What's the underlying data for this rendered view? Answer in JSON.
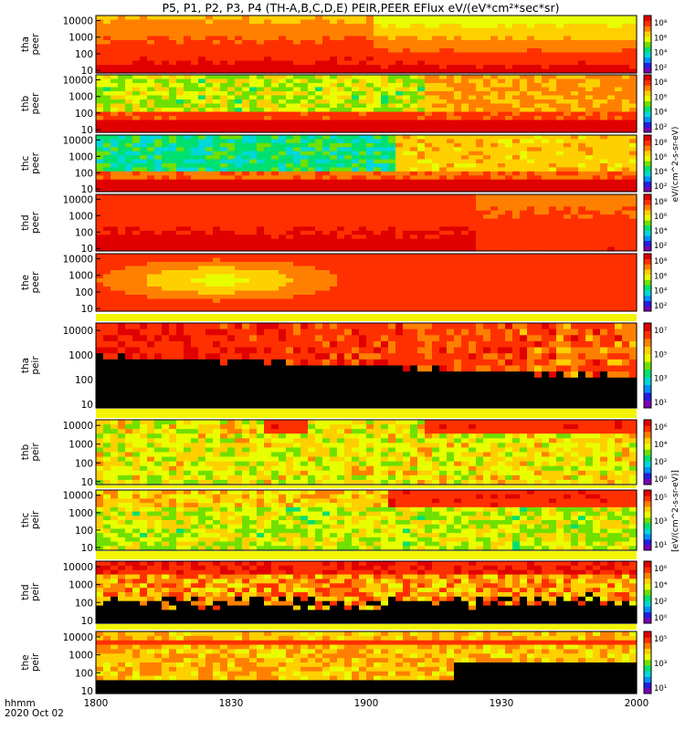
{
  "title": "P5, P1, P2, P3, P4 (TH-A,B,C,D,E) PEIR,PEER EFlux eV/(eV*cm²*sec*sr)",
  "colors": {
    "colormap": [
      "#7a00b4",
      "#2020e0",
      "#0090ff",
      "#00d8d8",
      "#00e070",
      "#70e000",
      "#e8ff00",
      "#ffd000",
      "#ff8000",
      "#ff3000",
      "#e00000"
    ],
    "background_band": "#f4f400",
    "fill": "#000000"
  },
  "chart_data": {
    "type": "heatmap",
    "x_axis": {
      "ticks": [
        "1800",
        "1830",
        "1900",
        "1930",
        "2000"
      ],
      "tick_values": [
        0,
        30,
        60,
        90,
        120
      ],
      "range": [
        0,
        120
      ],
      "label_line1": "hhmm",
      "label_line2": "2020 Oct 02"
    },
    "y_scale": "log",
    "y_ticks": [
      "10000",
      "1000",
      "100",
      "10"
    ],
    "y_tick_values": [
      10000,
      1000,
      100,
      10
    ],
    "colorbar_units_electron": "eV/(cm^2-s-sr-eV)",
    "colorbar_units_ion": "[eV/(cm^2-s-sr-eV)]",
    "panels": [
      {
        "probe": "tha",
        "species": "peer",
        "label": "tha peer",
        "ylim": [
          7,
          20000
        ],
        "cbar_ticks": [
          "10⁸",
          "10⁶",
          "10⁴",
          "10²"
        ]
      },
      {
        "probe": "thb",
        "species": "peer",
        "label": "thb peer",
        "ylim": [
          7,
          20000
        ],
        "cbar_ticks": [
          "10⁸",
          "10⁶",
          "10⁴",
          "10²"
        ]
      },
      {
        "probe": "thc",
        "species": "peer",
        "label": "thc peer",
        "ylim": [
          7,
          20000
        ],
        "cbar_ticks": [
          "10⁸",
          "10⁶",
          "10⁴",
          "10²"
        ]
      },
      {
        "probe": "thd",
        "species": "peer",
        "label": "thd peer",
        "ylim": [
          7,
          20000
        ],
        "cbar_ticks": [
          "10⁸",
          "10⁶",
          "10⁴",
          "10²"
        ]
      },
      {
        "probe": "the",
        "species": "peer",
        "label": "the peer",
        "ylim": [
          7,
          20000
        ],
        "cbar_ticks": [
          "10⁸",
          "10⁶",
          "10⁴",
          "10²"
        ]
      },
      {
        "probe": "tha",
        "species": "peir",
        "label": "tha peir",
        "ylim": [
          7,
          20000
        ],
        "cbar_ticks": [
          "10⁷",
          "10⁵",
          "10³",
          "10¹"
        ]
      },
      {
        "probe": "thb",
        "species": "peir",
        "label": "thb peir",
        "ylim": [
          7,
          20000
        ],
        "cbar_ticks": [
          "10⁶",
          "10⁴",
          "10²",
          "10⁰"
        ]
      },
      {
        "probe": "thc",
        "species": "peir",
        "label": "thc peir",
        "ylim": [
          7,
          20000
        ],
        "cbar_ticks": [
          "10⁵",
          "10³",
          "10¹"
        ]
      },
      {
        "probe": "thd",
        "species": "peir",
        "label": "thd peir",
        "ylim": [
          7,
          20000
        ],
        "cbar_ticks": [
          "10⁶",
          "10⁴",
          "10²",
          "10⁰"
        ]
      },
      {
        "probe": "the",
        "species": "peir",
        "label": "the peir",
        "ylim": [
          7,
          20000
        ],
        "cbar_ticks": [
          "10⁵",
          "10³",
          "10¹"
        ]
      }
    ]
  }
}
